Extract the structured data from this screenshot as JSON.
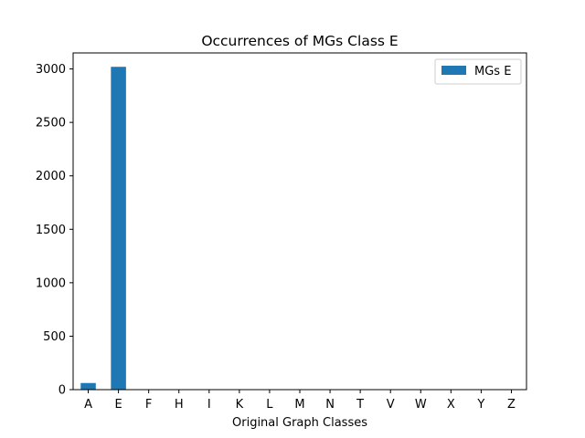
{
  "chart_data": {
    "type": "bar",
    "title": "Occurrences of MGs Class E",
    "xlabel": "Original Graph Classes",
    "ylabel": "",
    "categories": [
      "A",
      "E",
      "F",
      "H",
      "I",
      "K",
      "L",
      "M",
      "N",
      "T",
      "V",
      "W",
      "X",
      "Y",
      "Z"
    ],
    "series": [
      {
        "name": "MGs E",
        "color": "#1f77b4",
        "values": [
          62,
          3020,
          0,
          0,
          0,
          0,
          0,
          0,
          0,
          0,
          0,
          0,
          0,
          0,
          0
        ]
      }
    ],
    "ylim": [
      0,
      3150
    ],
    "yticks": [
      0,
      500,
      1000,
      1500,
      2000,
      2500,
      3000
    ],
    "grid": false,
    "legend_position": "top-right"
  }
}
